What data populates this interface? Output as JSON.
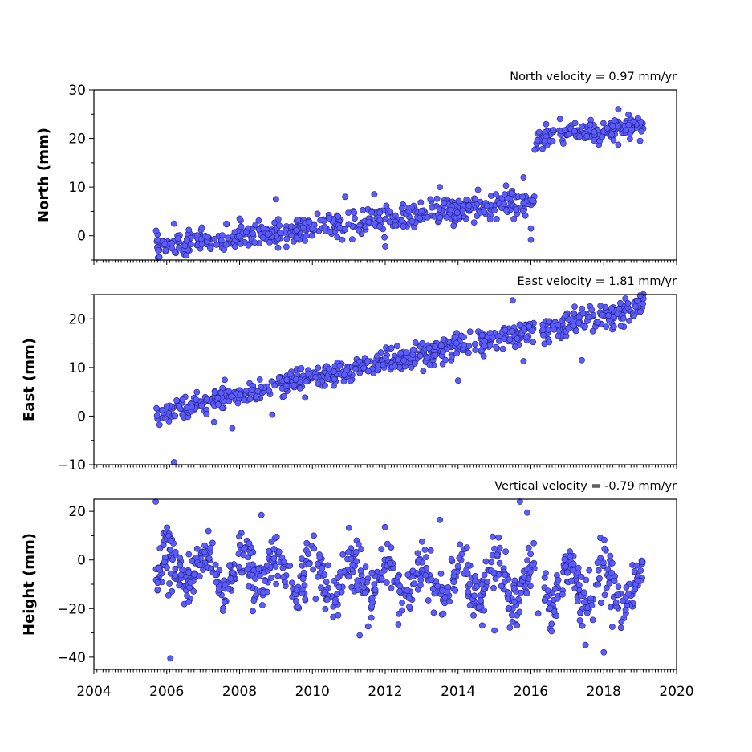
{
  "chart_data": [
    {
      "type": "scatter",
      "title": "North velocity = 0.97 mm/yr",
      "ylabel": "North (mm)",
      "xlim": [
        2004,
        2020
      ],
      "ylim": [
        -5,
        30
      ],
      "yticks": [
        0,
        10,
        20,
        30
      ],
      "ytick_labels": [
        "0",
        "10",
        "20",
        "30"
      ],
      "xtick_labels_visible": false,
      "colors": {
        "marker_fill": "#5b5bff",
        "marker_edge": "#20207a"
      },
      "series": [
        {
          "segments": [
            {
              "x_start": 2005.7,
              "x_end": 2016.1,
              "y_start": -2.5,
              "y_end": 7.3,
              "spread": 1.3,
              "count": 520
            },
            {
              "x_start": 2016.1,
              "x_end": 2019.1,
              "y_start": 19.5,
              "y_end": 23.0,
              "spread": 1.0,
              "count": 170
            }
          ],
          "outliers": [
            {
              "x": 2006.2,
              "y": 2.5
            },
            {
              "x": 2008.0,
              "y": 3.5
            },
            {
              "x": 2009.0,
              "y": 7.5
            },
            {
              "x": 2010.9,
              "y": 8.0
            },
            {
              "x": 2011.7,
              "y": 8.5
            },
            {
              "x": 2012.0,
              "y": -2.2
            },
            {
              "x": 2013.5,
              "y": 10.0
            },
            {
              "x": 2015.8,
              "y": 12.0
            },
            {
              "x": 2016.0,
              "y": -0.8
            },
            {
              "x": 2016.0,
              "y": 1.5
            },
            {
              "x": 2016.8,
              "y": 24.0
            },
            {
              "x": 2018.4,
              "y": 26.0
            },
            {
              "x": 2018.4,
              "y": 18.7
            },
            {
              "x": 2019.0,
              "y": 19.5
            }
          ]
        }
      ]
    },
    {
      "type": "scatter",
      "title": "East velocity = 1.81 mm/yr",
      "ylabel": "East (mm)",
      "xlim": [
        2004,
        2020
      ],
      "ylim": [
        -10,
        25
      ],
      "yticks": [
        -10,
        0,
        10,
        20
      ],
      "ytick_labels": [
        "−10",
        "0",
        "10",
        "20"
      ],
      "xtick_labels_visible": false,
      "colors": {
        "marker_fill": "#5b5bff",
        "marker_edge": "#20207a"
      },
      "series": [
        {
          "segments": [
            {
              "x_start": 2005.7,
              "x_end": 2016.1,
              "y_start": 0.5,
              "y_end": 17.8,
              "spread": 1.2,
              "count": 540
            },
            {
              "x_start": 2016.3,
              "x_end": 2019.1,
              "y_start": 17.5,
              "y_end": 22.5,
              "spread": 1.2,
              "count": 160
            }
          ],
          "outliers": [
            {
              "x": 2006.2,
              "y": -9.5
            },
            {
              "x": 2005.8,
              "y": -1.8
            },
            {
              "x": 2007.3,
              "y": -1.2
            },
            {
              "x": 2007.8,
              "y": -2.5
            },
            {
              "x": 2008.9,
              "y": 0.3
            },
            {
              "x": 2009.8,
              "y": 3.8
            },
            {
              "x": 2014.0,
              "y": 7.3
            },
            {
              "x": 2015.8,
              "y": 11.3
            },
            {
              "x": 2015.5,
              "y": 23.8
            },
            {
              "x": 2016.5,
              "y": 15.2
            },
            {
              "x": 2017.4,
              "y": 11.5
            },
            {
              "x": 2017.2,
              "y": 22.5
            },
            {
              "x": 2019.0,
              "y": 24.8
            }
          ]
        }
      ]
    },
    {
      "type": "scatter",
      "title": "Vertical velocity = -0.79 mm/yr",
      "ylabel": "Height (mm)",
      "xlim": [
        2004,
        2020
      ],
      "ylim": [
        -45,
        25
      ],
      "yticks": [
        -40,
        -20,
        0,
        20
      ],
      "ytick_labels": [
        "−40",
        "−20",
        "0",
        "20"
      ],
      "xticks": [
        2004,
        2006,
        2008,
        2010,
        2012,
        2014,
        2016,
        2018,
        2020
      ],
      "xtick_labels": [
        "2004",
        "2006",
        "2008",
        "2010",
        "2012",
        "2014",
        "2016",
        "2018",
        "2020"
      ],
      "xtick_labels_visible": true,
      "colors": {
        "marker_fill": "#5b5bff",
        "marker_edge": "#20207a"
      },
      "series": [
        {
          "segments": [
            {
              "x_start": 2005.7,
              "x_end": 2016.1,
              "y_start": -3.0,
              "y_end": -11.0,
              "spread": 5.5,
              "seasonal_amplitude": 7.0,
              "count": 640
            },
            {
              "x_start": 2016.3,
              "x_end": 2019.1,
              "y_start": -11.0,
              "y_end": -13.0,
              "spread": 5.5,
              "seasonal_amplitude": 7.0,
              "count": 170
            }
          ],
          "outliers": [
            {
              "x": 2005.7,
              "y": 24.0
            },
            {
              "x": 2006.1,
              "y": -40.5
            },
            {
              "x": 2008.6,
              "y": 18.5
            },
            {
              "x": 2011.3,
              "y": -31.0
            },
            {
              "x": 2013.5,
              "y": 16.5
            },
            {
              "x": 2015.0,
              "y": -29.0
            },
            {
              "x": 2015.7,
              "y": 24.0
            },
            {
              "x": 2015.9,
              "y": 19.5
            },
            {
              "x": 2016.2,
              "y": -22.0
            },
            {
              "x": 2017.5,
              "y": -35.0
            },
            {
              "x": 2018.0,
              "y": -38.0
            }
          ]
        }
      ]
    }
  ]
}
